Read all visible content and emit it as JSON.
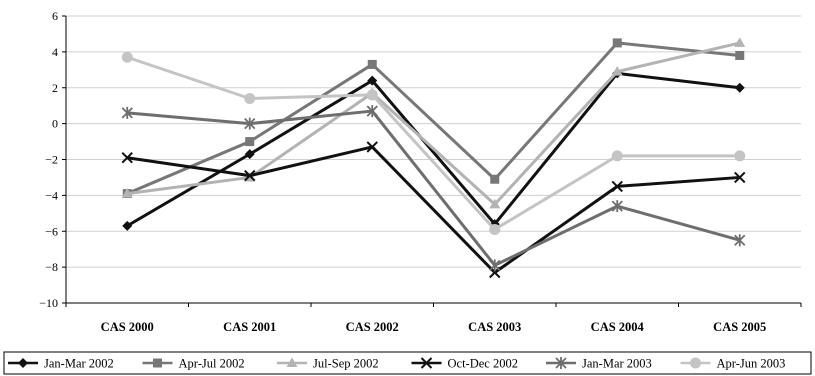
{
  "chart_data": {
    "type": "line",
    "title": "",
    "xlabel": "",
    "ylabel": "",
    "ylim": [
      -10,
      6
    ],
    "yticks": [
      "6",
      "4",
      "2",
      "0",
      "−2",
      "−4",
      "−6",
      "−8",
      "−10"
    ],
    "grid": "horizontal",
    "legend_position": "bottom",
    "categories": [
      "CAS 2000",
      "CAS 2001",
      "CAS 2002",
      "CAS 2003",
      "CAS 2004",
      "CAS 2005"
    ],
    "series": [
      {
        "name": "Jan-Mar 2002",
        "values": [
          -5.7,
          -1.7,
          2.4,
          -5.6,
          2.8,
          2.0
        ],
        "marker": "diamond",
        "color": "#111111"
      },
      {
        "name": "Apr-Jul 2002",
        "values": [
          -3.9,
          -1.0,
          3.3,
          -3.1,
          4.5,
          3.8
        ],
        "marker": "square",
        "color": "#777777"
      },
      {
        "name": "Jul-Sep 2002",
        "values": [
          -3.9,
          -3.0,
          1.7,
          -4.5,
          2.9,
          4.5
        ],
        "marker": "triangle",
        "color": "#b3b3b3"
      },
      {
        "name": "Oct-Dec 2002",
        "values": [
          -1.9,
          -2.9,
          -1.3,
          -8.3,
          -3.5,
          -3.0
        ],
        "marker": "x",
        "color": "#111111"
      },
      {
        "name": "Jan-Mar 2003",
        "values": [
          0.6,
          0.0,
          0.7,
          -7.9,
          -4.6,
          -6.5
        ],
        "marker": "asterisk",
        "color": "#6e6e6e"
      },
      {
        "name": "Apr-Jun 2003",
        "values": [
          3.7,
          1.4,
          1.6,
          -5.9,
          -1.8,
          -1.8
        ],
        "marker": "circle",
        "color": "#c4c4c4"
      }
    ]
  }
}
